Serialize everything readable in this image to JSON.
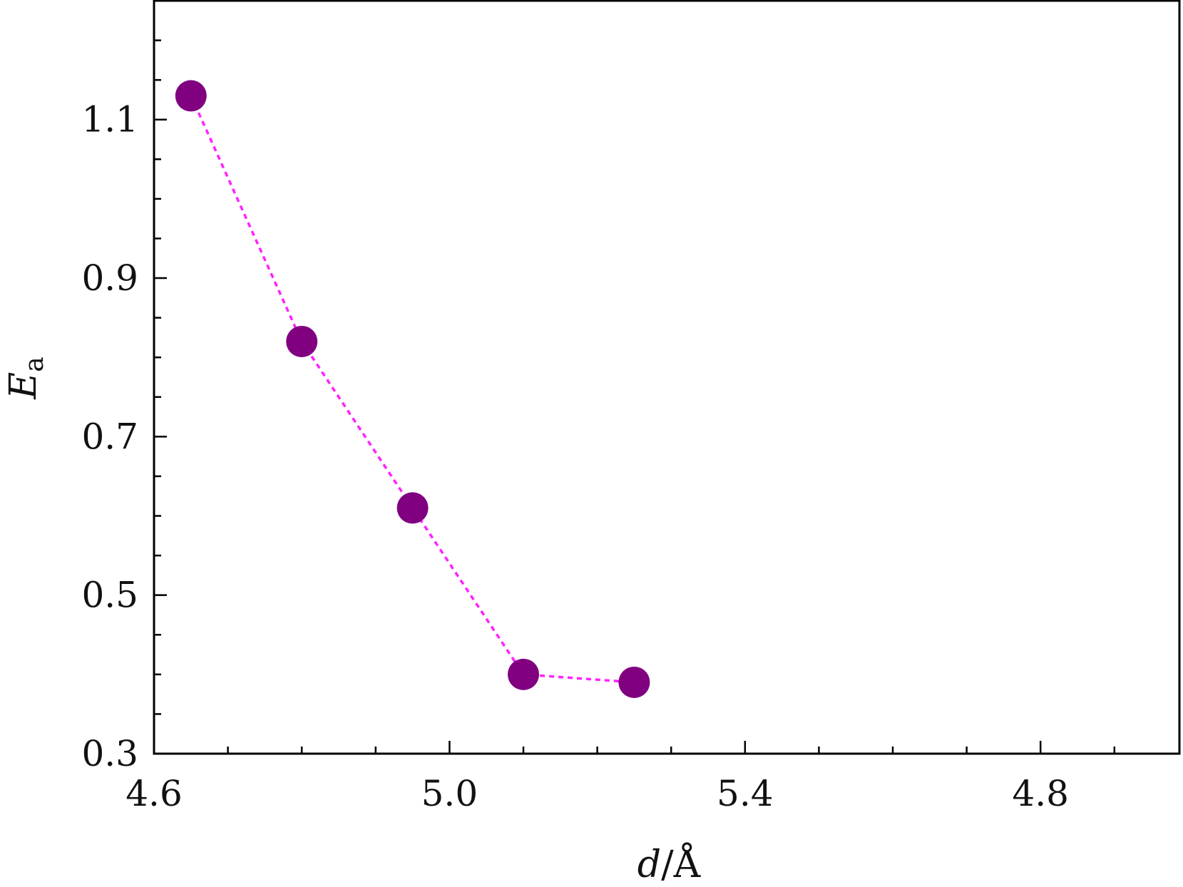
{
  "chart_data": {
    "type": "line",
    "x_tick_labels": [
      "4.6",
      "5.0",
      "5.4",
      "4.8"
    ],
    "y_tick_labels": [
      "0.3",
      "0.5",
      "0.7",
      "0.9",
      "1.1"
    ],
    "y_ticks": [
      0.3,
      0.5,
      0.7,
      0.9,
      1.1
    ],
    "ylim": [
      0.3,
      1.25
    ],
    "xlabel": {
      "var": "d",
      "sep": "/",
      "unit": "Å"
    },
    "ylabel": {
      "var": "E",
      "sub": "a"
    },
    "series": [
      {
        "points": [
          {
            "x_position": 0.5,
            "y": 1.13
          },
          {
            "x_position": 2.0,
            "y": 0.82
          },
          {
            "x_position": 3.5,
            "y": 0.61
          },
          {
            "x_position": 5.0,
            "y": 0.4
          },
          {
            "x_position": 6.5,
            "y": 0.39
          }
        ],
        "marker_color": "#800080",
        "line_color": "#ff22ff",
        "line_style": "dotted"
      }
    ],
    "grid": false,
    "legend": "none"
  }
}
